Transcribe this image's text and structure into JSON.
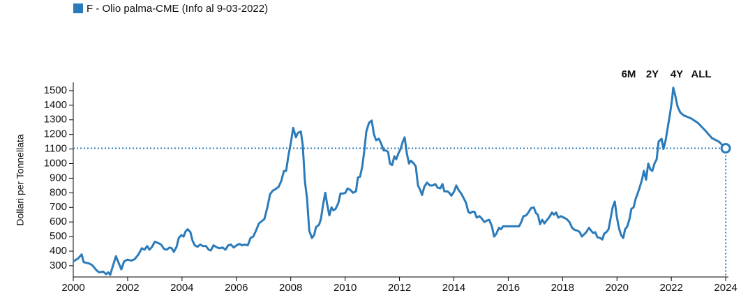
{
  "chart_data": {
    "type": "line",
    "ylabel": "Dollari per Tonnellata",
    "range_buttons": [
      "6M",
      "2Y",
      "4Y",
      "ALL"
    ],
    "xlim": [
      2000,
      2024.1
    ],
    "ylim": [
      223,
      1557
    ],
    "xticks": [
      2000,
      2002,
      2004,
      2006,
      2008,
      2010,
      2012,
      2014,
      2016,
      2018,
      2020,
      2022,
      2024
    ],
    "yticks": [
      300,
      400,
      500,
      600,
      700,
      800,
      900,
      1000,
      1100,
      1200,
      1300,
      1400,
      1500
    ],
    "grid": false,
    "legend": "top-left",
    "x": [
      2000.0,
      2000.18,
      2000.31,
      2000.38,
      2000.59,
      2000.69,
      2000.85,
      2000.95,
      2001.1,
      2001.21,
      2001.28,
      2001.36,
      2001.46,
      2001.57,
      2001.69,
      2001.77,
      2001.87,
      2002.0,
      2002.13,
      2002.26,
      2002.39,
      2002.52,
      2002.62,
      2002.72,
      2002.8,
      2002.9,
      2003.0,
      2003.13,
      2003.23,
      2003.34,
      2003.44,
      2003.54,
      2003.62,
      2003.7,
      2003.8,
      2003.88,
      2003.98,
      2004.06,
      2004.13,
      2004.21,
      2004.31,
      2004.39,
      2004.47,
      2004.57,
      2004.67,
      2004.77,
      2004.88,
      2004.98,
      2005.06,
      2005.16,
      2005.29,
      2005.39,
      2005.49,
      2005.6,
      2005.7,
      2005.8,
      2005.9,
      2006.01,
      2006.11,
      2006.21,
      2006.31,
      2006.42,
      2006.52,
      2006.62,
      2006.72,
      2006.83,
      2006.93,
      2007.03,
      2007.14,
      2007.24,
      2007.34,
      2007.44,
      2007.55,
      2007.65,
      2007.75,
      2007.83,
      2007.91,
      2008.01,
      2008.09,
      2008.19,
      2008.26,
      2008.37,
      2008.44,
      2008.52,
      2008.6,
      2008.68,
      2008.78,
      2008.86,
      2008.93,
      2009.04,
      2009.11,
      2009.19,
      2009.27,
      2009.34,
      2009.42,
      2009.5,
      2009.57,
      2009.65,
      2009.75,
      2009.83,
      2009.93,
      2010.01,
      2010.09,
      2010.19,
      2010.29,
      2010.4,
      2010.47,
      2010.55,
      2010.63,
      2010.7,
      2010.78,
      2010.88,
      2010.98,
      2011.06,
      2011.14,
      2011.24,
      2011.32,
      2011.42,
      2011.5,
      2011.58,
      2011.65,
      2011.73,
      2011.81,
      2011.88,
      2011.96,
      2012.04,
      2012.12,
      2012.19,
      2012.27,
      2012.35,
      2012.42,
      2012.53,
      2012.6,
      2012.68,
      2012.76,
      2012.83,
      2012.91,
      2013.01,
      2013.12,
      2013.22,
      2013.32,
      2013.4,
      2013.5,
      2013.58,
      2013.65,
      2013.76,
      2013.83,
      2013.91,
      2014.01,
      2014.09,
      2014.17,
      2014.27,
      2014.37,
      2014.45,
      2014.53,
      2014.6,
      2014.68,
      2014.76,
      2014.84,
      2014.94,
      2015.02,
      2015.12,
      2015.22,
      2015.3,
      2015.4,
      2015.48,
      2015.55,
      2015.66,
      2015.73,
      2015.81,
      2015.91,
      2016.04,
      2016.17,
      2016.3,
      2016.4,
      2016.48,
      2016.56,
      2016.66,
      2016.74,
      2016.84,
      2016.94,
      2017.02,
      2017.09,
      2017.17,
      2017.25,
      2017.33,
      2017.43,
      2017.5,
      2017.61,
      2017.68,
      2017.76,
      2017.84,
      2017.94,
      2018.04,
      2018.15,
      2018.25,
      2018.35,
      2018.45,
      2018.56,
      2018.63,
      2018.71,
      2018.79,
      2018.87,
      2018.97,
      2019.05,
      2019.12,
      2019.2,
      2019.28,
      2019.38,
      2019.46,
      2019.53,
      2019.61,
      2019.69,
      2019.76,
      2019.84,
      2019.92,
      2019.99,
      2020.07,
      2020.15,
      2020.23,
      2020.3,
      2020.38,
      2020.46,
      2020.53,
      2020.61,
      2020.69,
      2020.77,
      2020.84,
      2020.92,
      2020.99,
      2021.07,
      2021.15,
      2021.23,
      2021.3,
      2021.38,
      2021.46,
      2021.53,
      2021.64,
      2021.71,
      2021.79,
      2021.87,
      2021.95,
      2022.02,
      2022.07,
      2022.15,
      2022.23,
      2022.33,
      2022.46,
      2022.72,
      2022.97,
      2023.23,
      2023.49,
      2023.75,
      2024.0
    ],
    "series": [
      {
        "name": "F - Olio palma-CME (Info al 9-03-2022)",
        "color": "#2b7bba",
        "values": [
          330,
          350,
          378,
          325,
          315,
          305,
          270,
          255,
          260,
          242,
          255,
          238,
          300,
          365,
          310,
          275,
          330,
          342,
          335,
          345,
          375,
          420,
          410,
          435,
          410,
          430,
          465,
          455,
          445,
          415,
          410,
          425,
          420,
          395,
          430,
          490,
          510,
          500,
          535,
          550,
          530,
          470,
          440,
          430,
          445,
          435,
          435,
          410,
          405,
          440,
          425,
          420,
          425,
          410,
          440,
          445,
          425,
          440,
          450,
          440,
          445,
          440,
          490,
          500,
          540,
          590,
          605,
          620,
          700,
          790,
          815,
          825,
          840,
          880,
          950,
          950,
          1050,
          1150,
          1245,
          1180,
          1210,
          1220,
          1130,
          880,
          760,
          540,
          490,
          510,
          565,
          580,
          620,
          720,
          800,
          720,
          645,
          700,
          680,
          690,
          730,
          795,
          795,
          800,
          830,
          820,
          800,
          810,
          905,
          910,
          980,
          1080,
          1220,
          1280,
          1295,
          1200,
          1160,
          1170,
          1140,
          1090,
          1090,
          1080,
          1000,
          990,
          1050,
          1030,
          1070,
          1100,
          1150,
          1180,
          1070,
          1000,
          1020,
          1000,
          980,
          850,
          820,
          785,
          840,
          870,
          850,
          850,
          860,
          835,
          830,
          860,
          810,
          810,
          800,
          780,
          810,
          850,
          820,
          795,
          760,
          730,
          670,
          660,
          670,
          670,
          630,
          640,
          625,
          600,
          610,
          615,
          570,
          500,
          515,
          560,
          550,
          570,
          570,
          570,
          570,
          570,
          570,
          600,
          640,
          645,
          665,
          695,
          700,
          660,
          650,
          585,
          615,
          590,
          615,
          630,
          665,
          650,
          665,
          630,
          640,
          630,
          620,
          600,
          560,
          545,
          540,
          530,
          500,
          515,
          530,
          560,
          540,
          525,
          530,
          495,
          490,
          480,
          520,
          530,
          550,
          620,
          700,
          740,
          640,
          560,
          510,
          490,
          550,
          570,
          620,
          690,
          700,
          760,
          800,
          840,
          890,
          950,
          890,
          1000,
          960,
          950,
          1000,
          1030,
          1150,
          1170,
          1100,
          1160,
          1250,
          1340,
          1430,
          1520,
          1460,
          1390,
          1350,
          1330,
          1310,
          1280,
          1230,
          1175,
          1150,
          1105
        ]
      }
    ]
  }
}
